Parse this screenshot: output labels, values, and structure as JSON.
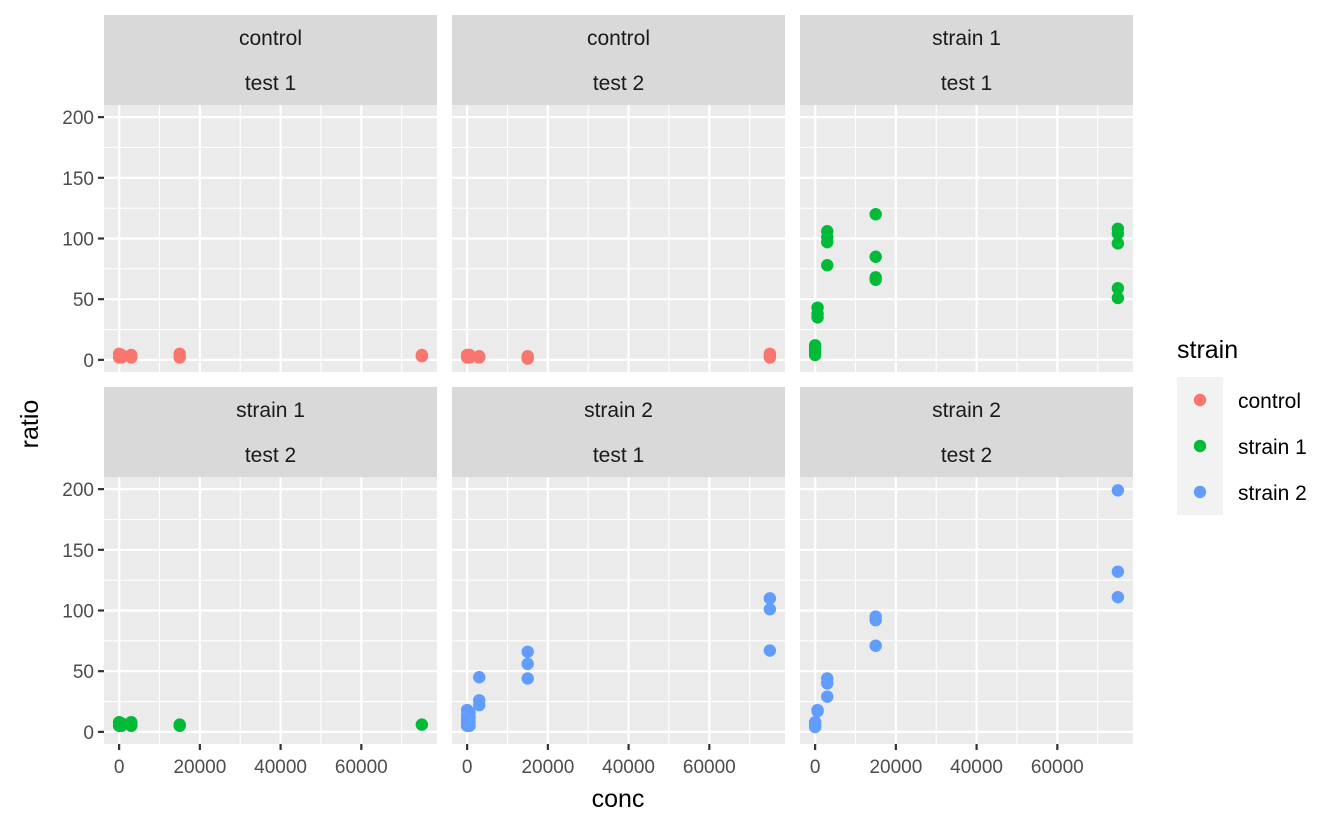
{
  "chart_data": {
    "type": "scatter",
    "facet_layout": "2 rows x 3 columns, shared axes, free facet strips",
    "xlabel": "conc",
    "ylabel": "ratio",
    "xlim": [
      -3750,
      78750
    ],
    "ylim": [
      -10,
      210
    ],
    "x_ticks": [
      0,
      20000,
      40000,
      60000
    ],
    "y_ticks": [
      0,
      50,
      100,
      150,
      200
    ],
    "x_tick_labels": [
      "0",
      "20000",
      "40000",
      "60000"
    ],
    "y_tick_labels": [
      "0",
      "50",
      "100",
      "150",
      "200"
    ],
    "grid": true,
    "legend": {
      "title": "strain",
      "position": "right",
      "entries": [
        {
          "label": "control",
          "color": "#F8766D"
        },
        {
          "label": "strain 1",
          "color": "#00BA38"
        },
        {
          "label": "strain 2",
          "color": "#619CFF"
        }
      ]
    },
    "panels": [
      {
        "strip_top": "control",
        "strip_bottom": "test 1",
        "series": "control",
        "points": [
          {
            "x": 0,
            "y": 2
          },
          {
            "x": 0,
            "y": 3
          },
          {
            "x": 0,
            "y": 4
          },
          {
            "x": 0,
            "y": 5
          },
          {
            "x": 600,
            "y": 2
          },
          {
            "x": 600,
            "y": 3
          },
          {
            "x": 600,
            "y": 4
          },
          {
            "x": 3000,
            "y": 2
          },
          {
            "x": 3000,
            "y": 3
          },
          {
            "x": 3000,
            "y": 4
          },
          {
            "x": 15000,
            "y": 2
          },
          {
            "x": 15000,
            "y": 3
          },
          {
            "x": 15000,
            "y": 5
          },
          {
            "x": 75000,
            "y": 3
          },
          {
            "x": 75000,
            "y": 4
          }
        ]
      },
      {
        "strip_top": "control",
        "strip_bottom": "test 2",
        "series": "control",
        "points": [
          {
            "x": 0,
            "y": 2
          },
          {
            "x": 0,
            "y": 3
          },
          {
            "x": 0,
            "y": 4
          },
          {
            "x": 600,
            "y": 2
          },
          {
            "x": 600,
            "y": 3
          },
          {
            "x": 600,
            "y": 4
          },
          {
            "x": 3000,
            "y": 2
          },
          {
            "x": 3000,
            "y": 3
          },
          {
            "x": 15000,
            "y": 1
          },
          {
            "x": 15000,
            "y": 3
          },
          {
            "x": 75000,
            "y": 2
          },
          {
            "x": 75000,
            "y": 3
          },
          {
            "x": 75000,
            "y": 5
          }
        ]
      },
      {
        "strip_top": "strain 1",
        "strip_bottom": "test 1",
        "series": "strain 1",
        "points": [
          {
            "x": 0,
            "y": 4
          },
          {
            "x": 0,
            "y": 7
          },
          {
            "x": 0,
            "y": 10
          },
          {
            "x": 0,
            "y": 12
          },
          {
            "x": 600,
            "y": 35
          },
          {
            "x": 600,
            "y": 38
          },
          {
            "x": 600,
            "y": 43
          },
          {
            "x": 3000,
            "y": 78
          },
          {
            "x": 3000,
            "y": 97
          },
          {
            "x": 3000,
            "y": 101
          },
          {
            "x": 3000,
            "y": 106
          },
          {
            "x": 15000,
            "y": 66
          },
          {
            "x": 15000,
            "y": 68
          },
          {
            "x": 15000,
            "y": 85
          },
          {
            "x": 15000,
            "y": 120
          },
          {
            "x": 75000,
            "y": 51
          },
          {
            "x": 75000,
            "y": 59
          },
          {
            "x": 75000,
            "y": 96
          },
          {
            "x": 75000,
            "y": 104
          },
          {
            "x": 75000,
            "y": 108
          }
        ]
      },
      {
        "strip_top": "strain 1",
        "strip_bottom": "test 2",
        "series": "strain 1",
        "points": [
          {
            "x": 0,
            "y": 5
          },
          {
            "x": 0,
            "y": 7
          },
          {
            "x": 0,
            "y": 8
          },
          {
            "x": 600,
            "y": 5
          },
          {
            "x": 600,
            "y": 7
          },
          {
            "x": 3000,
            "y": 5
          },
          {
            "x": 3000,
            "y": 6
          },
          {
            "x": 3000,
            "y": 8
          },
          {
            "x": 15000,
            "y": 5
          },
          {
            "x": 15000,
            "y": 6
          },
          {
            "x": 75000,
            "y": 6
          }
        ]
      },
      {
        "strip_top": "strain 2",
        "strip_bottom": "test 1",
        "series": "strain 2",
        "points": [
          {
            "x": 0,
            "y": 5
          },
          {
            "x": 0,
            "y": 8
          },
          {
            "x": 0,
            "y": 11
          },
          {
            "x": 0,
            "y": 14
          },
          {
            "x": 0,
            "y": 18
          },
          {
            "x": 600,
            "y": 5
          },
          {
            "x": 600,
            "y": 8
          },
          {
            "x": 600,
            "y": 12
          },
          {
            "x": 600,
            "y": 16
          },
          {
            "x": 3000,
            "y": 22
          },
          {
            "x": 3000,
            "y": 26
          },
          {
            "x": 3000,
            "y": 45
          },
          {
            "x": 15000,
            "y": 44
          },
          {
            "x": 15000,
            "y": 56
          },
          {
            "x": 15000,
            "y": 66
          },
          {
            "x": 75000,
            "y": 67
          },
          {
            "x": 75000,
            "y": 101
          },
          {
            "x": 75000,
            "y": 110
          }
        ]
      },
      {
        "strip_top": "strain 2",
        "strip_bottom": "test 2",
        "series": "strain 2",
        "points": [
          {
            "x": 0,
            "y": 4
          },
          {
            "x": 0,
            "y": 6
          },
          {
            "x": 0,
            "y": 8
          },
          {
            "x": 600,
            "y": 17
          },
          {
            "x": 600,
            "y": 18
          },
          {
            "x": 3000,
            "y": 29
          },
          {
            "x": 3000,
            "y": 40
          },
          {
            "x": 3000,
            "y": 44
          },
          {
            "x": 15000,
            "y": 71
          },
          {
            "x": 15000,
            "y": 92
          },
          {
            "x": 15000,
            "y": 95
          },
          {
            "x": 75000,
            "y": 111
          },
          {
            "x": 75000,
            "y": 132
          },
          {
            "x": 75000,
            "y": 199
          }
        ]
      }
    ]
  }
}
